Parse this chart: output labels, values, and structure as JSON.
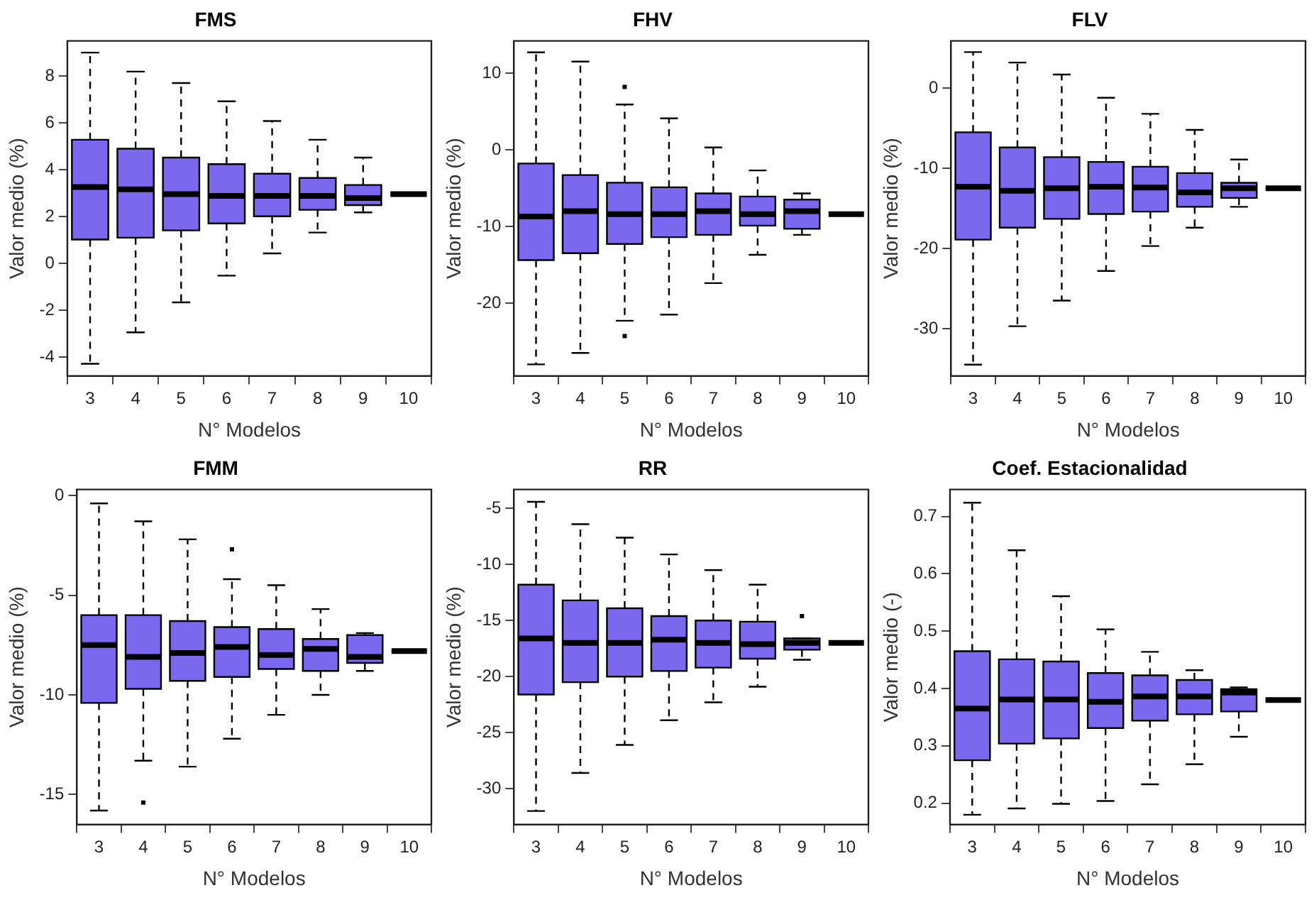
{
  "chart_data": [
    {
      "type": "box",
      "title": "FMS",
      "xlabel": "N° Modelos",
      "ylabel": "Valor medio (%)",
      "categories": [
        "3",
        "4",
        "5",
        "6",
        "7",
        "8",
        "9",
        "10"
      ],
      "colors": [
        "#7b68ee",
        "#7b68ee",
        "#7b68ee",
        "#7b68ee",
        "#7b68ee",
        "#7b68ee",
        "#7b68ee",
        "#000000"
      ],
      "grid": false,
      "legend": false,
      "ylim": [
        -4.8,
        9.5
      ],
      "yticks": [
        -4,
        -2,
        0,
        2,
        4,
        6,
        8
      ],
      "boxes": [
        {
          "low": -4.28,
          "q1": 1.02,
          "median": 3.26,
          "q3": 5.28,
          "high": 9.0
        },
        {
          "low": -2.94,
          "q1": 1.1,
          "median": 3.16,
          "q3": 4.9,
          "high": 8.19
        },
        {
          "low": -1.66,
          "q1": 1.41,
          "median": 2.96,
          "q3": 4.52,
          "high": 7.7
        },
        {
          "low": -0.52,
          "q1": 1.71,
          "median": 2.88,
          "q3": 4.24,
          "high": 6.92
        },
        {
          "low": 0.43,
          "q1": 2.01,
          "median": 2.88,
          "q3": 3.83,
          "high": 6.08
        },
        {
          "low": 1.32,
          "q1": 2.29,
          "median": 2.88,
          "q3": 3.65,
          "high": 5.28
        },
        {
          "low": 2.18,
          "q1": 2.49,
          "median": 2.79,
          "q3": 3.35,
          "high": 4.52
        },
        {
          "low": 2.96,
          "q1": 2.96,
          "median": 2.96,
          "q3": 2.96,
          "high": 2.96
        }
      ]
    },
    {
      "type": "box",
      "title": "FHV",
      "xlabel": "N° Modelos",
      "ylabel": "Valor medio (%)",
      "categories": [
        "3",
        "4",
        "5",
        "6",
        "7",
        "8",
        "9",
        "10"
      ],
      "colors": [
        "#7b68ee",
        "#7b68ee",
        "#7b68ee",
        "#7b68ee",
        "#7b68ee",
        "#7b68ee",
        "#7b68ee",
        "#000000"
      ],
      "grid": false,
      "legend": false,
      "ylim": [
        -29.5,
        14.2
      ],
      "yticks": [
        -20,
        -10,
        0,
        10
      ],
      "boxes": [
        {
          "low": -28.0,
          "q1": -14.4,
          "median": -8.7,
          "q3": -1.8,
          "high": 12.7
        },
        {
          "low": -26.5,
          "q1": -13.5,
          "median": -8.0,
          "q3": -3.3,
          "high": 11.5
        },
        {
          "low": -22.3,
          "q1": -12.3,
          "median": -8.4,
          "q3": -4.3,
          "high": 5.9,
          "outliers": [
            8.2,
            -24.3
          ]
        },
        {
          "low": -21.5,
          "q1": -11.4,
          "median": -8.4,
          "q3": -4.9,
          "high": 4.1
        },
        {
          "low": -17.4,
          "q1": -11.1,
          "median": -8.0,
          "q3": -5.7,
          "high": 0.3
        },
        {
          "low": -13.7,
          "q1": -9.9,
          "median": -8.4,
          "q3": -6.1,
          "high": -2.7
        },
        {
          "low": -11.1,
          "q1": -10.3,
          "median": -8.0,
          "q3": -6.5,
          "high": -5.7
        },
        {
          "low": -8.4,
          "q1": -8.4,
          "median": -8.4,
          "q3": -8.4,
          "high": -8.4
        }
      ]
    },
    {
      "type": "box",
      "title": "FLV",
      "xlabel": "N° Modelos",
      "ylabel": "Valor medio (%)",
      "categories": [
        "3",
        "4",
        "5",
        "6",
        "7",
        "8",
        "9",
        "10"
      ],
      "colors": [
        "#7b68ee",
        "#7b68ee",
        "#7b68ee",
        "#7b68ee",
        "#7b68ee",
        "#7b68ee",
        "#7b68ee",
        "#000000"
      ],
      "grid": false,
      "legend": false,
      "ylim": [
        -35.9,
        5.9
      ],
      "yticks": [
        -30,
        -20,
        -10,
        0
      ],
      "boxes": [
        {
          "low": -34.5,
          "q1": -18.9,
          "median": -12.3,
          "q3": -5.5,
          "high": 4.5
        },
        {
          "low": -29.7,
          "q1": -17.4,
          "median": -12.8,
          "q3": -7.4,
          "high": 3.2
        },
        {
          "low": -26.5,
          "q1": -16.3,
          "median": -12.5,
          "q3": -8.6,
          "high": 1.7
        },
        {
          "low": -22.8,
          "q1": -15.7,
          "median": -12.3,
          "q3": -9.2,
          "high": -1.2
        },
        {
          "low": -19.7,
          "q1": -15.4,
          "median": -12.4,
          "q3": -9.8,
          "high": -3.2
        },
        {
          "low": -17.4,
          "q1": -14.8,
          "median": -13.0,
          "q3": -10.6,
          "high": -5.2
        },
        {
          "low": -14.8,
          "q1": -13.7,
          "median": -12.5,
          "q3": -11.8,
          "high": -8.9
        },
        {
          "low": -12.5,
          "q1": -12.5,
          "median": -12.5,
          "q3": -12.5,
          "high": -12.5
        }
      ]
    },
    {
      "type": "box",
      "title": "FMM",
      "xlabel": "N° Modelos",
      "ylabel": "Valor medio (%)",
      "categories": [
        "3",
        "4",
        "5",
        "6",
        "7",
        "8",
        "9",
        "10"
      ],
      "colors": [
        "#7b68ee",
        "#7b68ee",
        "#7b68ee",
        "#7b68ee",
        "#7b68ee",
        "#7b68ee",
        "#7b68ee",
        "#000000"
      ],
      "grid": false,
      "legend": false,
      "ylim": [
        -16.5,
        0.3
      ],
      "yticks": [
        -15,
        -10,
        -5,
        0
      ],
      "boxes": [
        {
          "low": -15.8,
          "q1": -10.4,
          "median": -7.5,
          "q3": -6.0,
          "high": -0.4
        },
        {
          "low": -13.3,
          "q1": -9.7,
          "median": -8.1,
          "q3": -6.0,
          "high": -1.3,
          "outliers": [
            -15.4
          ]
        },
        {
          "low": -13.6,
          "q1": -9.3,
          "median": -7.9,
          "q3": -6.3,
          "high": -2.2
        },
        {
          "low": -12.2,
          "q1": -9.1,
          "median": -7.6,
          "q3": -6.6,
          "high": -4.2,
          "outliers": [
            -2.7
          ]
        },
        {
          "low": -11.0,
          "q1": -8.7,
          "median": -8.0,
          "q3": -6.7,
          "high": -4.5
        },
        {
          "low": -10.0,
          "q1": -8.8,
          "median": -7.7,
          "q3": -7.2,
          "high": -5.7
        },
        {
          "low": -8.8,
          "q1": -8.4,
          "median": -8.1,
          "q3": -7.0,
          "high": -6.9
        },
        {
          "low": -7.8,
          "q1": -7.8,
          "median": -7.8,
          "q3": -7.8,
          "high": -7.8
        }
      ]
    },
    {
      "type": "box",
      "title": "RR",
      "xlabel": "N° Modelos",
      "ylabel": "Valor medio (%)",
      "categories": [
        "3",
        "4",
        "5",
        "6",
        "7",
        "8",
        "9",
        "10"
      ],
      "colors": [
        "#7b68ee",
        "#7b68ee",
        "#7b68ee",
        "#7b68ee",
        "#7b68ee",
        "#7b68ee",
        "#7b68ee",
        "#000000"
      ],
      "grid": false,
      "legend": false,
      "ylim": [
        -33.2,
        -3.3
      ],
      "yticks": [
        -30,
        -25,
        -20,
        -15,
        -10,
        -5
      ],
      "boxes": [
        {
          "low": -32.0,
          "q1": -21.6,
          "median": -16.6,
          "q3": -11.8,
          "high": -4.4
        },
        {
          "low": -28.6,
          "q1": -20.5,
          "median": -17.0,
          "q3": -13.2,
          "high": -6.4
        },
        {
          "low": -26.1,
          "q1": -20.0,
          "median": -17.0,
          "q3": -13.9,
          "high": -7.6
        },
        {
          "low": -23.9,
          "q1": -19.5,
          "median": -16.7,
          "q3": -14.6,
          "high": -9.1
        },
        {
          "low": -22.3,
          "q1": -19.2,
          "median": -17.0,
          "q3": -15.0,
          "high": -10.5
        },
        {
          "low": -20.9,
          "q1": -18.4,
          "median": -17.1,
          "q3": -15.1,
          "high": -11.8
        },
        {
          "low": -18.5,
          "q1": -17.6,
          "median": -17.0,
          "q3": -16.6,
          "high": -16.6,
          "outliers": [
            -14.6
          ]
        },
        {
          "low": -17.0,
          "q1": -17.0,
          "median": -17.0,
          "q3": -17.0,
          "high": -17.0
        }
      ]
    },
    {
      "type": "box",
      "title": "Coef. Estacionalidad",
      "xlabel": "N° Modelos",
      "ylabel": "Valor medio (-)",
      "categories": [
        "3",
        "4",
        "5",
        "6",
        "7",
        "8",
        "9",
        "10"
      ],
      "colors": [
        "#7b68ee",
        "#7b68ee",
        "#7b68ee",
        "#7b68ee",
        "#7b68ee",
        "#7b68ee",
        "#7b68ee",
        "#000000"
      ],
      "grid": false,
      "legend": false,
      "ylim": [
        0.163,
        0.747
      ],
      "yticks": [
        0.2,
        0.3,
        0.4,
        0.5,
        0.6,
        0.7
      ],
      "boxes": [
        {
          "low": 0.18,
          "q1": 0.275,
          "median": 0.365,
          "q3": 0.465,
          "high": 0.724
        },
        {
          "low": 0.191,
          "q1": 0.304,
          "median": 0.381,
          "q3": 0.451,
          "high": 0.641
        },
        {
          "low": 0.199,
          "q1": 0.313,
          "median": 0.381,
          "q3": 0.447,
          "high": 0.561
        },
        {
          "low": 0.204,
          "q1": 0.331,
          "median": 0.377,
          "q3": 0.427,
          "high": 0.503
        },
        {
          "low": 0.233,
          "q1": 0.344,
          "median": 0.386,
          "q3": 0.423,
          "high": 0.464
        },
        {
          "low": 0.268,
          "q1": 0.355,
          "median": 0.386,
          "q3": 0.415,
          "high": 0.432
        },
        {
          "low": 0.316,
          "q1": 0.36,
          "median": 0.393,
          "q3": 0.399,
          "high": 0.402
        },
        {
          "low": 0.38,
          "q1": 0.38,
          "median": 0.38,
          "q3": 0.38,
          "high": 0.38
        }
      ]
    }
  ]
}
